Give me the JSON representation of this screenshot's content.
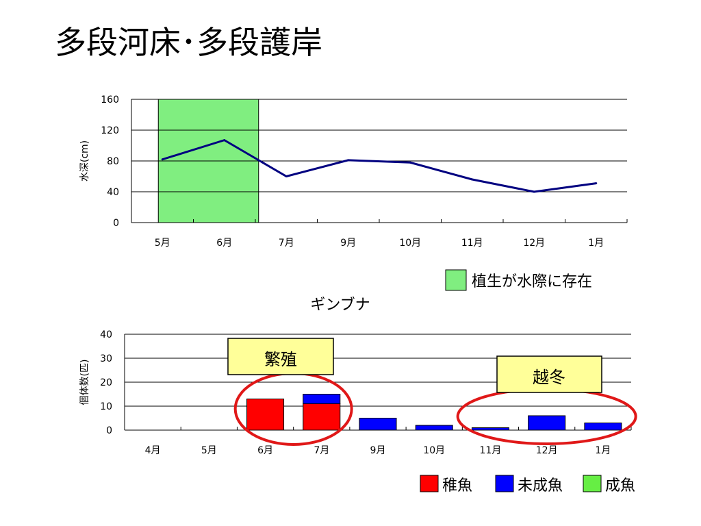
{
  "slide": {
    "title": "多段河床･多段護岸"
  },
  "chart_data": [
    {
      "type": "line",
      "categories": [
        "5月",
        "6月",
        "7月",
        "9月",
        "10月",
        "11月",
        "12月",
        "1月"
      ],
      "series": [
        {
          "values": [
            82,
            107,
            60,
            81,
            78,
            56,
            40,
            51
          ],
          "color": "#000080"
        }
      ],
      "ylabel": "水深(cm)",
      "ylim": [
        0,
        160
      ],
      "yticks": [
        0,
        40,
        80,
        120,
        160
      ],
      "grid": true,
      "highlight": {
        "from_category": "5月",
        "to_category": "6月",
        "color": "#80ee80",
        "label": "植生が水際に存在"
      }
    },
    {
      "type": "bar",
      "stacked": true,
      "title": "ギンブナ",
      "categories": [
        "4月",
        "5月",
        "6月",
        "7月",
        "9月",
        "10月",
        "11月",
        "12月",
        "1月"
      ],
      "series": [
        {
          "name": "稚魚",
          "color": "#ff0000",
          "values": [
            0,
            0,
            13,
            11,
            0,
            0,
            0,
            0,
            0
          ]
        },
        {
          "name": "未成魚",
          "color": "#0000ff",
          "values": [
            0,
            0,
            0,
            4,
            5,
            2,
            1,
            6,
            3
          ]
        },
        {
          "name": "成魚",
          "color": "#66ee44",
          "values": [
            0,
            0,
            0,
            0,
            0,
            0,
            0,
            0,
            0
          ]
        }
      ],
      "ylabel": "個体数(匹)",
      "ylim": [
        0,
        40
      ],
      "yticks": [
        0,
        10,
        20,
        30,
        40
      ],
      "grid": true,
      "annotations": [
        {
          "text": "繁殖",
          "categories": [
            "6月",
            "7月"
          ]
        },
        {
          "text": "越冬",
          "categories": [
            "11月",
            "12月",
            "1月"
          ]
        }
      ]
    }
  ]
}
